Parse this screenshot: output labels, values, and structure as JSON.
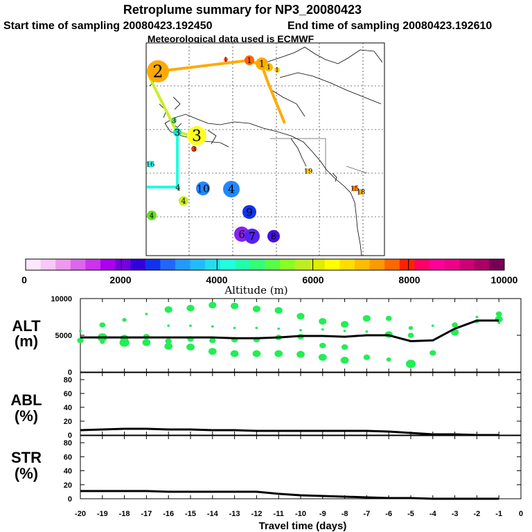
{
  "header": {
    "title": "Retroplume summary for NP3_20080423",
    "start_label": "Start time of sampling 20080423.192450",
    "end_label": "End time of sampling 20080423.192610",
    "met_label": "Meteorological data used is ECMWF"
  },
  "colors": {
    "alt_points": "#22ee55",
    "line": "#000000",
    "track_orange": "#ffaa00",
    "track_cyan": "#22ffdd",
    "track_yellowgreen": "#ccee22"
  },
  "map": {
    "day_markers": [
      {
        "label": "1",
        "color": "#ff5533"
      },
      {
        "label": "1",
        "color": "#ff6600"
      },
      {
        "label": "1",
        "color": "#ffaa00"
      },
      {
        "label": "1",
        "color": "#ffbb00"
      },
      {
        "label": "1",
        "color": "#ffcc00"
      },
      {
        "label": "2",
        "color": "#ffaa00"
      },
      {
        "label": "3",
        "color": "#44ee66"
      },
      {
        "label": "3",
        "color": "#22ddbb"
      },
      {
        "label": "3",
        "color": "#ffff22"
      },
      {
        "label": "3",
        "color": "#ff4400"
      },
      {
        "label": "16",
        "color": "#22ffee"
      },
      {
        "label": "4",
        "color": "#22ffdd"
      },
      {
        "label": "10",
        "color": "#2288ff"
      },
      {
        "label": "4",
        "color": "#2288ff"
      },
      {
        "label": "4",
        "color": "#ccee22"
      },
      {
        "label": "4",
        "color": "#66dd22"
      },
      {
        "label": "9",
        "color": "#1133ee"
      },
      {
        "label": "6",
        "color": "#8822ee"
      },
      {
        "label": "7",
        "color": "#5522ee"
      },
      {
        "label": "8",
        "color": "#4411dd"
      },
      {
        "label": "19",
        "color": "#ffcc00"
      },
      {
        "label": "15",
        "color": "#ff7700"
      },
      {
        "label": "18",
        "color": "#ffaa00"
      }
    ]
  },
  "colorbar": {
    "tick_labels": [
      "0",
      "2000",
      "4000",
      "6000",
      "8000",
      "10000"
    ],
    "title": "Altitude (m)",
    "colors": [
      "#ffe8ff",
      "#f8c8f8",
      "#ee99ee",
      "#dd66ee",
      "#cc33ee",
      "#aa00ee",
      "#7700dd",
      "#3300dd",
      "#1133ee",
      "#2266ff",
      "#2299ff",
      "#22bbff",
      "#22ddee",
      "#22ffdd",
      "#22ffaa",
      "#33ff77",
      "#55ff44",
      "#88ff22",
      "#bbee22",
      "#ddee00",
      "#ffff00",
      "#ffdd00",
      "#ffbb00",
      "#ff9900",
      "#ff6600",
      "#ff2200",
      "#ff0066",
      "#ff0099",
      "#ee0088",
      "#cc0077",
      "#aa0066",
      "#770055"
    ]
  },
  "chart_data": [
    {
      "type": "scatter",
      "panel_label": [
        "ALT",
        "(m)"
      ],
      "ylim": [
        0,
        10000
      ],
      "y_ticks": [
        "0",
        "5000",
        "10000"
      ],
      "x": [
        -20,
        -19,
        -18,
        -17,
        -16,
        -15,
        -14,
        -13,
        -12,
        -11,
        -10,
        -9,
        -8,
        -7,
        -6,
        -5,
        -4,
        -3,
        -2,
        -1
      ],
      "mean_line": [
        4700,
        4700,
        4700,
        4700,
        4700,
        4700,
        4700,
        4600,
        4600,
        4700,
        4900,
        4900,
        4800,
        5000,
        5000,
        4200,
        4300,
        5900,
        7000,
        7000
      ],
      "points": [
        {
          "x": -20,
          "y": 5600
        },
        {
          "x": -20,
          "y": 4300
        },
        {
          "x": -19,
          "y": 6400
        },
        {
          "x": -19,
          "y": 4700
        },
        {
          "x": -19,
          "y": 4100
        },
        {
          "x": -18,
          "y": 7100
        },
        {
          "x": -18,
          "y": 4600
        },
        {
          "x": -18,
          "y": 4000
        },
        {
          "x": -17,
          "y": 7900
        },
        {
          "x": -17,
          "y": 4800
        },
        {
          "x": -17,
          "y": 4000
        },
        {
          "x": -16,
          "y": 8500
        },
        {
          "x": -16,
          "y": 6300
        },
        {
          "x": -16,
          "y": 4200
        },
        {
          "x": -16,
          "y": 3500
        },
        {
          "x": -15,
          "y": 8700
        },
        {
          "x": -15,
          "y": 6300
        },
        {
          "x": -15,
          "y": 4500
        },
        {
          "x": -15,
          "y": 3400
        },
        {
          "x": -14,
          "y": 9100
        },
        {
          "x": -14,
          "y": 6200
        },
        {
          "x": -14,
          "y": 4300
        },
        {
          "x": -14,
          "y": 2800
        },
        {
          "x": -13,
          "y": 9000
        },
        {
          "x": -13,
          "y": 6000
        },
        {
          "x": -13,
          "y": 4400
        },
        {
          "x": -13,
          "y": 2500
        },
        {
          "x": -12,
          "y": 8600
        },
        {
          "x": -12,
          "y": 6000
        },
        {
          "x": -12,
          "y": 4400
        },
        {
          "x": -12,
          "y": 2500
        },
        {
          "x": -11,
          "y": 8400
        },
        {
          "x": -11,
          "y": 5900
        },
        {
          "x": -11,
          "y": 4700
        },
        {
          "x": -11,
          "y": 2500
        },
        {
          "x": -10,
          "y": 7600
        },
        {
          "x": -10,
          "y": 5700
        },
        {
          "x": -10,
          "y": 4800
        },
        {
          "x": -10,
          "y": 2400
        },
        {
          "x": -9,
          "y": 6900
        },
        {
          "x": -9,
          "y": 5800
        },
        {
          "x": -9,
          "y": 3600
        },
        {
          "x": -9,
          "y": 2000
        },
        {
          "x": -8,
          "y": 6500
        },
        {
          "x": -8,
          "y": 5600
        },
        {
          "x": -8,
          "y": 3400
        },
        {
          "x": -8,
          "y": 1600
        },
        {
          "x": -7,
          "y": 7300
        },
        {
          "x": -7,
          "y": 5500
        },
        {
          "x": -7,
          "y": 2000
        },
        {
          "x": -6,
          "y": 7300
        },
        {
          "x": -6,
          "y": 5100
        },
        {
          "x": -6,
          "y": 1700
        },
        {
          "x": -5,
          "y": 6000
        },
        {
          "x": -5,
          "y": 5000
        },
        {
          "x": -5,
          "y": 1100
        },
        {
          "x": -4,
          "y": 6300
        },
        {
          "x": -4,
          "y": 2600
        },
        {
          "x": -3,
          "y": 6400
        },
        {
          "x": -3,
          "y": 5400
        },
        {
          "x": -2,
          "y": 7500
        },
        {
          "x": -2,
          "y": 6900
        },
        {
          "x": -1,
          "y": 7900
        },
        {
          "x": -1,
          "y": 7200
        },
        {
          "x": -1,
          "y": 6700
        }
      ]
    },
    {
      "type": "line",
      "panel_label": [
        "ABL",
        "(%)"
      ],
      "ylim": [
        0,
        90
      ],
      "y_ticks": [
        "0",
        "20",
        "40",
        "60",
        "80"
      ],
      "x": [
        -20,
        -19,
        -18,
        -17,
        -16,
        -15,
        -14,
        -13,
        -12,
        -11,
        -10,
        -9,
        -8,
        -7,
        -6,
        -5,
        -4,
        -3,
        -2,
        -1
      ],
      "values": [
        7,
        8,
        9,
        9,
        8,
        8,
        7,
        7,
        6,
        6,
        6,
        6,
        6,
        6,
        5,
        3,
        1,
        1,
        0,
        0
      ]
    },
    {
      "type": "line",
      "panel_label": [
        "STR",
        "(%)"
      ],
      "ylim": [
        0,
        90
      ],
      "y_ticks": [
        "0",
        "20",
        "40",
        "60",
        "80"
      ],
      "x": [
        -20,
        -19,
        -18,
        -17,
        -16,
        -15,
        -14,
        -13,
        -12,
        -11,
        -10,
        -9,
        -8,
        -7,
        -6,
        -5,
        -4,
        -3,
        -2,
        -1
      ],
      "values": [
        11,
        11,
        11,
        11,
        10,
        10,
        10,
        10,
        10,
        7,
        5,
        4,
        3,
        2,
        1,
        1,
        0,
        0,
        0,
        0
      ]
    }
  ],
  "x_axis": {
    "tick_labels": [
      "-20",
      "-19",
      "-18",
      "-17",
      "-16",
      "-15",
      "-14",
      "-13",
      "-12",
      "-11",
      "-10",
      "-9",
      "-8",
      "-7",
      "-6",
      "-5",
      "-4",
      "-3",
      "-2",
      "-1",
      "0"
    ],
    "label": "Travel time (days)"
  }
}
